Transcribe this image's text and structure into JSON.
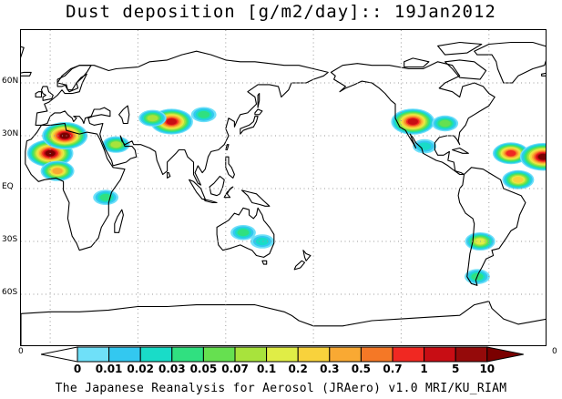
{
  "title": "Dust deposition [g/m2/day]:: 19Jan2012",
  "footer": "The Japanese Reanalysis for Aerosol (JRAero) v1.0 MRI/KU_RIAM",
  "map": {
    "projection": "equirectangular, Pacific-centered",
    "lon_range": [
      -20,
      340
    ],
    "lat_range": [
      -90,
      90
    ],
    "lat_ticks": [
      {
        "lat": 60,
        "label": "60N"
      },
      {
        "lat": 30,
        "label": "30N"
      },
      {
        "lat": 0,
        "label": "EQ"
      },
      {
        "lat": -30,
        "label": "30S"
      },
      {
        "lat": -60,
        "label": "60S"
      }
    ],
    "lon_grid": [
      0,
      60,
      120,
      180,
      240,
      300
    ],
    "grid": "dotted",
    "land_outline_color": "#000000",
    "ocean_color": "#ffffff",
    "left_corner_value": "0",
    "right_corner_value": "0"
  },
  "colorbar": {
    "labels": [
      "0",
      "0.01",
      "0.02",
      "0.03",
      "0.05",
      "0.07",
      "0.1",
      "0.2",
      "0.3",
      "0.5",
      "0.7",
      "1",
      "5",
      "10"
    ],
    "colors": [
      "#ffffff",
      "#6fe0f8",
      "#33c8f0",
      "#19dcc8",
      "#30e080",
      "#66e050",
      "#a8e33c",
      "#e0ed46",
      "#f8d23c",
      "#f9a933",
      "#f57826",
      "#f02822",
      "#c80d14",
      "#950a0a"
    ],
    "under_color": "#ffffff",
    "over_color": "#7a0000"
  },
  "dust_regions": [
    {
      "name": "sahara-west",
      "lon": 0,
      "lat": 20,
      "peak": 12
    },
    {
      "name": "north-africa-coast",
      "lon": 10,
      "lat": 30,
      "peak": 10
    },
    {
      "name": "west-africa",
      "lon": 5,
      "lat": 10,
      "peak": 0.5
    },
    {
      "name": "arabia",
      "lon": 45,
      "lat": 25,
      "peak": 0.1
    },
    {
      "name": "east-africa",
      "lon": 38,
      "lat": -5,
      "peak": 0.05
    },
    {
      "name": "taklimakan",
      "lon": 83,
      "lat": 38,
      "peak": 5
    },
    {
      "name": "central-asia",
      "lon": 70,
      "lat": 40,
      "peak": 0.1
    },
    {
      "name": "gobi",
      "lon": 105,
      "lat": 42,
      "peak": 0.05
    },
    {
      "name": "great-basin",
      "lon": 248,
      "lat": 38,
      "peak": 6
    },
    {
      "name": "us-east",
      "lon": 270,
      "lat": 37,
      "peak": 0.07
    },
    {
      "name": "mexico",
      "lon": 256,
      "lat": 24,
      "peak": 0.03
    },
    {
      "name": "mid-atlantic",
      "lon": 315,
      "lat": 20,
      "peak": 1
    },
    {
      "name": "atlantic-sahara-plume",
      "lon": 337,
      "lat": 18,
      "peak": 12
    },
    {
      "name": "tropical-atlantic",
      "lon": 320,
      "lat": 5,
      "peak": 0.3
    },
    {
      "name": "argentina",
      "lon": 294,
      "lat": -30,
      "peak": 0.2
    },
    {
      "name": "patagonia",
      "lon": 292,
      "lat": -50,
      "peak": 0.05
    },
    {
      "name": "australia-central",
      "lon": 132,
      "lat": -25,
      "peak": 0.05
    },
    {
      "name": "australia-east",
      "lon": 145,
      "lat": -30,
      "peak": 0.03
    }
  ]
}
